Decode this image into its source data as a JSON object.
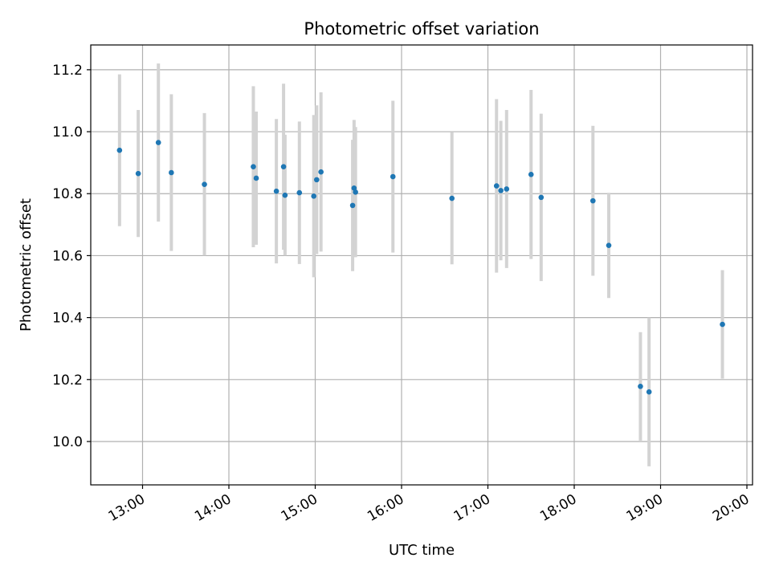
{
  "chart_data": {
    "type": "scatter",
    "title": "Photometric offset variation",
    "xlabel": "UTC time",
    "ylabel": "Photometric offset",
    "xlim": [
      "12:24",
      "20:00"
    ],
    "ylim": [
      9.86,
      11.28
    ],
    "xticks": [
      "13:00",
      "14:00",
      "15:00",
      "16:00",
      "17:00",
      "18:00",
      "19:00",
      "20:00"
    ],
    "yticks": [
      "10.0",
      "10.2",
      "10.4",
      "10.6",
      "10.8",
      "11.0",
      "11.2"
    ],
    "grid": true,
    "colors": {
      "points": "#1f77b4",
      "errorbars": "#d3d3d3",
      "grid": "#b0b0b0"
    },
    "points": [
      {
        "time": "12:44",
        "value": 10.94,
        "error": 0.245
      },
      {
        "time": "12:57",
        "value": 10.865,
        "error": 0.205
      },
      {
        "time": "13:11",
        "value": 10.965,
        "error": 0.255
      },
      {
        "time": "13:20",
        "value": 10.868,
        "error": 0.253
      },
      {
        "time": "13:43",
        "value": 10.83,
        "error": 0.23
      },
      {
        "time": "14:17",
        "value": 10.887,
        "error": 0.26
      },
      {
        "time": "14:19",
        "value": 10.85,
        "error": 0.215
      },
      {
        "time": "14:33",
        "value": 10.808,
        "error": 0.233
      },
      {
        "time": "14:38",
        "value": 10.887,
        "error": 0.268
      },
      {
        "time": "14:39",
        "value": 10.795,
        "error": 0.195
      },
      {
        "time": "14:49",
        "value": 10.803,
        "error": 0.23
      },
      {
        "time": "14:59",
        "value": 10.792,
        "error": 0.262
      },
      {
        "time": "15:01",
        "value": 10.845,
        "error": 0.24
      },
      {
        "time": "15:04",
        "value": 10.87,
        "error": 0.257
      },
      {
        "time": "15:26",
        "value": 10.762,
        "error": 0.212
      },
      {
        "time": "15:27",
        "value": 10.818,
        "error": 0.22
      },
      {
        "time": "15:28",
        "value": 10.805,
        "error": 0.21
      },
      {
        "time": "15:54",
        "value": 10.855,
        "error": 0.245
      },
      {
        "time": "16:35",
        "value": 10.785,
        "error": 0.213
      },
      {
        "time": "17:06",
        "value": 10.825,
        "error": 0.28
      },
      {
        "time": "17:09",
        "value": 10.81,
        "error": 0.225
      },
      {
        "time": "17:13",
        "value": 10.815,
        "error": 0.255
      },
      {
        "time": "17:30",
        "value": 10.862,
        "error": 0.273
      },
      {
        "time": "17:37",
        "value": 10.788,
        "error": 0.27
      },
      {
        "time": "18:13",
        "value": 10.777,
        "error": 0.242
      },
      {
        "time": "18:24",
        "value": 10.633,
        "error": 0.17
      },
      {
        "time": "18:46",
        "value": 10.178,
        "error": 0.175
      },
      {
        "time": "18:52",
        "value": 10.16,
        "error": 0.24
      },
      {
        "time": "19:43",
        "value": 10.378,
        "error": 0.175
      }
    ]
  }
}
